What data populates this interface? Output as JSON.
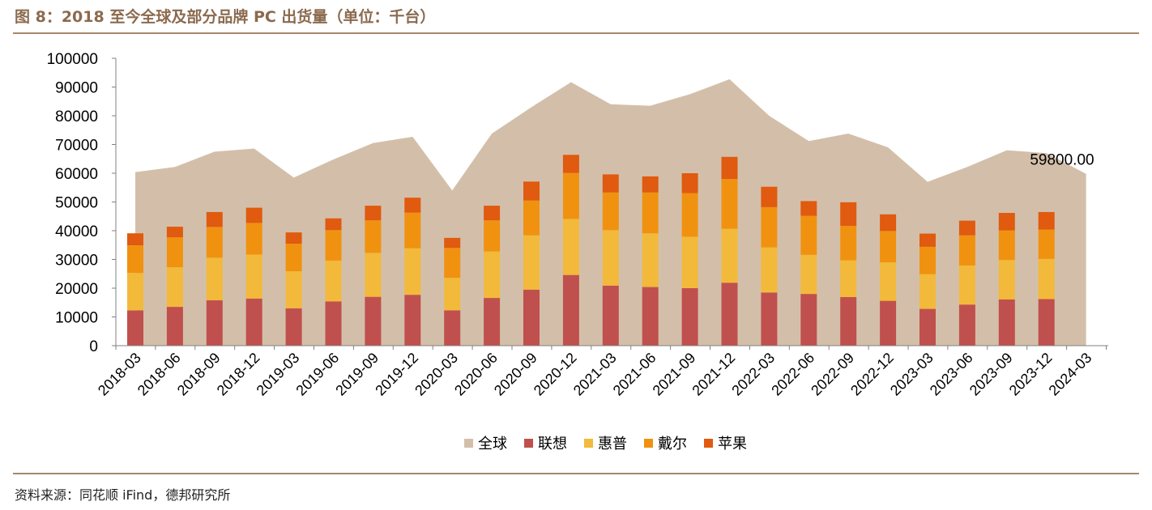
{
  "header": {
    "title": "图 8：2018 至今全球及部分品牌 PC 出货量（单位：千台）"
  },
  "footer": {
    "source": "资料来源：同花顺 iFind，德邦研究所"
  },
  "chart_data": {
    "type": "bar",
    "title": "图 8：2018 至今全球及部分品牌 PC 出货量（单位：千台）",
    "xlabel": "",
    "ylabel": "",
    "ylim": [
      0,
      100000
    ],
    "yticks": [
      0,
      10000,
      20000,
      30000,
      40000,
      50000,
      60000,
      70000,
      80000,
      90000,
      100000
    ],
    "categories": [
      "2018-03",
      "2018-06",
      "2018-09",
      "2018-12",
      "2019-03",
      "2019-06",
      "2019-09",
      "2019-12",
      "2020-03",
      "2020-06",
      "2020-09",
      "2020-12",
      "2021-03",
      "2021-06",
      "2021-09",
      "2021-12",
      "2022-03",
      "2022-06",
      "2022-09",
      "2022-12",
      "2023-03",
      "2023-06",
      "2023-09",
      "2023-12",
      "2024-03"
    ],
    "legend_position": "bottom",
    "grid": false,
    "series": [
      {
        "name": "全球",
        "type": "area",
        "color": "#d3bfa9",
        "values": [
          60400,
          62200,
          67500,
          68600,
          58500,
          64800,
          70500,
          72700,
          54000,
          73800,
          83000,
          91700,
          84000,
          83500,
          87500,
          92700,
          80000,
          71200,
          73800,
          69000,
          57000,
          62200,
          68000,
          67000,
          59800
        ]
      },
      {
        "name": "联想",
        "type": "bar",
        "color": "#c0504d",
        "values": [
          12300,
          13500,
          15800,
          16400,
          13000,
          15400,
          17000,
          17700,
          12300,
          16600,
          19500,
          24600,
          20900,
          20400,
          20000,
          21900,
          18500,
          18000,
          16900,
          15600,
          12800,
          14300,
          16100,
          16200,
          null
        ]
      },
      {
        "name": "惠普",
        "type": "bar",
        "color": "#f2b93b",
        "values": [
          13000,
          13800,
          14800,
          15300,
          12900,
          14200,
          15300,
          16200,
          11300,
          16200,
          18900,
          19500,
          19300,
          18700,
          17900,
          18800,
          15700,
          13600,
          12800,
          13400,
          12100,
          13600,
          13700,
          14000,
          null
        ]
      },
      {
        "name": "戴尔",
        "type": "bar",
        "color": "#f0920f",
        "values": [
          9600,
          10400,
          10700,
          11000,
          9600,
          10600,
          11300,
          12400,
          10400,
          10800,
          12100,
          16000,
          13100,
          14200,
          15200,
          17300,
          14000,
          13600,
          12000,
          10900,
          9500,
          10500,
          10300,
          10200,
          null
        ]
      },
      {
        "name": "苹果",
        "type": "bar",
        "color": "#e05a0f",
        "values": [
          4200,
          3700,
          5200,
          5300,
          3900,
          4100,
          5100,
          5200,
          3500,
          5100,
          6600,
          6300,
          6300,
          5600,
          6900,
          7700,
          7100,
          5100,
          8200,
          5800,
          4600,
          5100,
          6100,
          6100,
          null
        ]
      }
    ],
    "annotations": [
      {
        "category": "2024-03",
        "series": "全球",
        "text": "59800.00"
      }
    ]
  }
}
